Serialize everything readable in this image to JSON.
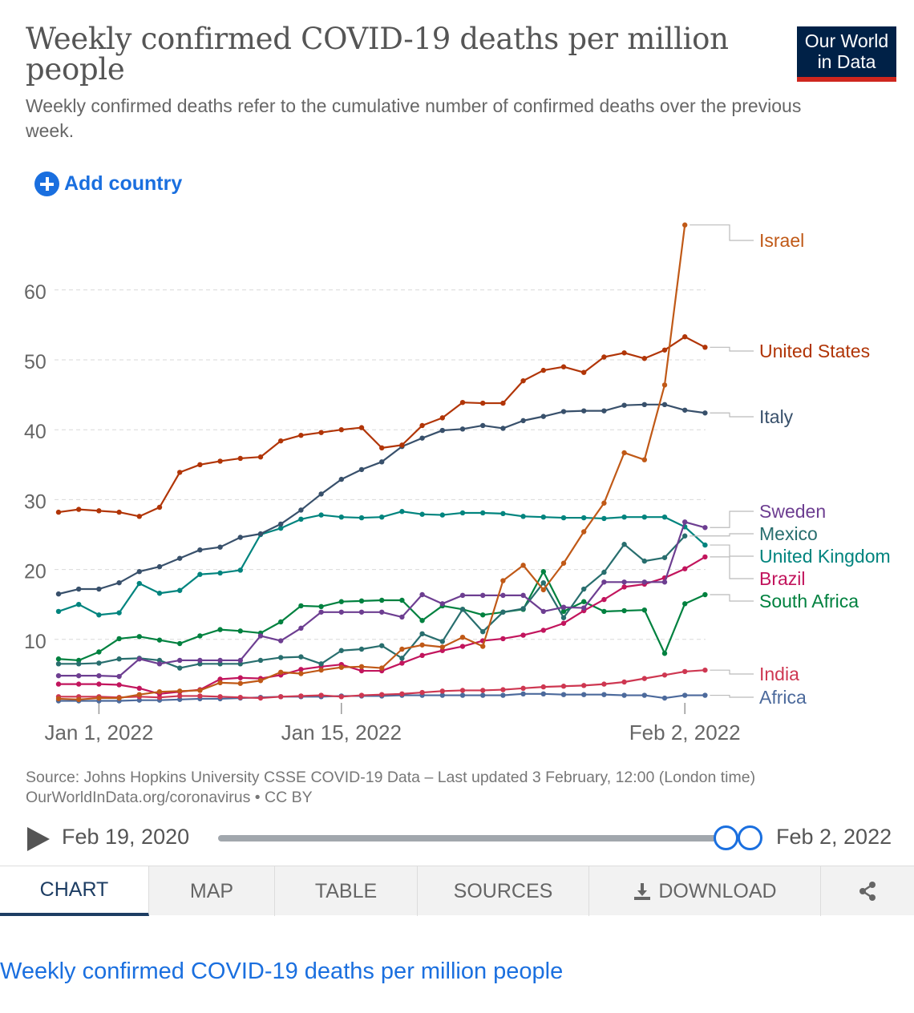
{
  "header": {
    "title": "Weekly confirmed COVID-19 deaths per million people",
    "subtitle": "Weekly confirmed deaths refer to the cumulative number of confirmed deaths over the previous week.",
    "logo_line1": "Our World",
    "logo_line2": "in Data",
    "logo_bg": "#002147",
    "logo_accent": "#ce261e"
  },
  "controls": {
    "add_country": "Add country"
  },
  "chart_data": {
    "type": "line",
    "title": "Weekly confirmed COVID-19 deaths per million people",
    "ylim": [
      0,
      70
    ],
    "yticks": [
      10,
      20,
      30,
      40,
      50,
      60
    ],
    "grid": true,
    "xlim": [
      0,
      32
    ],
    "xtick_positions": [
      2,
      14,
      31
    ],
    "xtick_labels": [
      "Jan 1, 2022",
      "Jan 15, 2022",
      "Feb 2, 2022"
    ],
    "legend": "right, labels at line ends",
    "series": [
      {
        "name": "Israel",
        "color": "#c05917",
        "values": [
          1.5,
          1.4,
          1.6,
          1.6,
          2.1,
          2.5,
          2.6,
          2.7,
          3.8,
          3.7,
          4.1,
          5.3,
          5.1,
          5.6,
          6.0,
          6.1,
          5.9,
          8.6,
          9.2,
          8.9,
          10.3,
          9.0,
          18.4,
          20.6,
          17.1,
          20.9,
          25.4,
          29.5,
          36.7,
          35.7,
          46.4,
          69.3
        ]
      },
      {
        "name": "United States",
        "color": "#b13507",
        "values": [
          28.2,
          28.6,
          28.4,
          28.2,
          27.6,
          28.9,
          33.9,
          35.0,
          35.5,
          35.9,
          36.1,
          38.4,
          39.2,
          39.6,
          40.0,
          40.3,
          37.4,
          37.8,
          40.6,
          41.7,
          43.9,
          43.8,
          43.8,
          47.0,
          48.5,
          49.0,
          48.2,
          50.4,
          51.0,
          50.2,
          51.4,
          53.3,
          51.8
        ]
      },
      {
        "name": "Italy",
        "color": "#38506b",
        "values": [
          16.5,
          17.2,
          17.2,
          18.1,
          19.7,
          20.4,
          21.6,
          22.8,
          23.2,
          24.6,
          25.1,
          26.5,
          28.5,
          30.8,
          32.9,
          34.3,
          35.4,
          37.6,
          38.8,
          39.9,
          40.1,
          40.6,
          40.2,
          41.3,
          41.9,
          42.6,
          42.7,
          42.7,
          43.5,
          43.6,
          43.6,
          42.8,
          42.4
        ]
      },
      {
        "name": "Sweden",
        "color": "#6d3e91",
        "values": [
          4.8,
          4.8,
          4.8,
          4.7,
          7.2,
          6.5,
          7.0,
          7.0,
          7.0,
          7.0,
          10.5,
          9.8,
          11.6,
          13.9,
          13.9,
          13.9,
          13.9,
          13.2,
          16.4,
          15.1,
          16.3,
          16.3,
          16.3,
          16.3,
          14.0,
          14.6,
          14.5,
          18.2,
          18.2,
          18.2,
          18.2,
          26.8,
          26.0
        ]
      },
      {
        "name": "Mexico",
        "color": "#286e6e",
        "values": [
          6.5,
          6.5,
          6.6,
          7.2,
          7.3,
          7.0,
          5.9,
          6.5,
          6.5,
          6.5,
          7.0,
          7.4,
          7.5,
          6.5,
          8.4,
          8.6,
          9.1,
          7.3,
          10.8,
          9.7,
          14.3,
          11.1,
          13.9,
          14.4,
          18.1,
          13.1,
          17.2,
          19.6,
          23.6,
          21.2,
          21.7,
          24.8
        ]
      },
      {
        "name": "United Kingdom",
        "color": "#00847e",
        "values": [
          14.0,
          15.0,
          13.5,
          13.8,
          18.0,
          16.6,
          17.0,
          19.3,
          19.5,
          19.9,
          25.0,
          25.9,
          27.2,
          27.8,
          27.5,
          27.4,
          27.5,
          28.3,
          27.9,
          27.8,
          28.1,
          28.1,
          28.0,
          27.6,
          27.5,
          27.4,
          27.4,
          27.3,
          27.5,
          27.5,
          27.5,
          26.1,
          23.5
        ]
      },
      {
        "name": "Brazil",
        "color": "#c2155d",
        "values": [
          3.6,
          3.6,
          3.6,
          3.5,
          3.0,
          2.2,
          2.5,
          2.8,
          4.3,
          4.5,
          4.4,
          4.9,
          5.7,
          6.1,
          6.4,
          5.5,
          5.5,
          6.6,
          7.7,
          8.4,
          9.0,
          9.8,
          10.1,
          10.6,
          11.3,
          12.3,
          14.1,
          15.7,
          17.5,
          17.9,
          18.8,
          20.1,
          21.8
        ]
      },
      {
        "name": "South Africa",
        "color": "#00813f",
        "values": [
          7.2,
          7.0,
          8.2,
          10.1,
          10.4,
          9.9,
          9.4,
          10.5,
          11.4,
          11.2,
          10.9,
          12.5,
          14.8,
          14.7,
          15.4,
          15.5,
          15.6,
          15.6,
          12.7,
          14.8,
          14.3,
          13.5,
          13.9,
          14.3,
          19.7,
          14.0,
          15.4,
          14.0,
          14.1,
          14.2,
          8.0,
          15.1,
          16.4
        ]
      },
      {
        "name": "India",
        "color": "#ce3751",
        "values": [
          1.8,
          1.8,
          1.8,
          1.7,
          1.8,
          1.7,
          1.9,
          1.9,
          1.8,
          1.7,
          1.6,
          1.8,
          1.9,
          2.0,
          1.8,
          2.0,
          2.1,
          2.2,
          2.4,
          2.6,
          2.7,
          2.7,
          2.8,
          3.0,
          3.2,
          3.3,
          3.4,
          3.6,
          3.9,
          4.4,
          4.9,
          5.4,
          5.6
        ]
      },
      {
        "name": "Africa",
        "color": "#4c6a9c",
        "values": [
          1.2,
          1.2,
          1.2,
          1.2,
          1.3,
          1.3,
          1.4,
          1.5,
          1.5,
          1.6,
          1.7,
          1.8,
          1.8,
          1.8,
          1.9,
          1.9,
          1.9,
          2.0,
          2.0,
          2.0,
          2.0,
          2.0,
          2.0,
          2.2,
          2.2,
          2.1,
          2.1,
          2.1,
          2.0,
          2.0,
          1.6,
          2.0,
          2.0
        ]
      }
    ]
  },
  "source": {
    "line1": "Source: Johns Hopkins University CSSE COVID-19 Data – Last updated 3 February, 12:00 (London time)",
    "line2": "OurWorldInData.org/coronavirus • CC BY"
  },
  "timeline": {
    "start": "Feb 19, 2020",
    "end": "Feb 2, 2022"
  },
  "tabs": [
    "CHART",
    "MAP",
    "TABLE",
    "SOURCES",
    "DOWNLOAD"
  ],
  "bottom_link": "Weekly confirmed COVID-19 deaths per million people",
  "accent_color": "#1a6fdf"
}
